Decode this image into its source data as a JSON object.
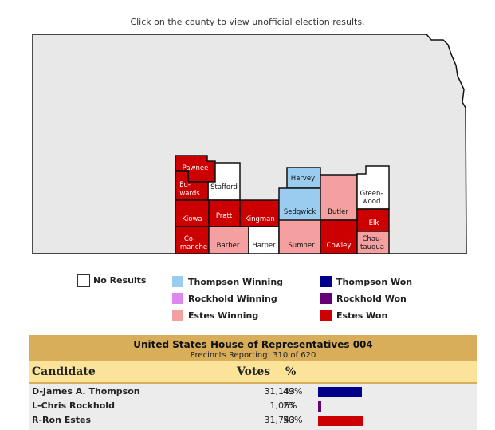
{
  "instruction": "Click on the county to view unofficial election results.",
  "colors": {
    "estes_won": "#cc0000",
    "estes_winning": "#f4a0a0",
    "thompson_won": "#00008b",
    "thompson_winning": "#99ccee",
    "rockhold_won": "#660077",
    "rockhold_winning": "#dd88ee",
    "no_results": "#ffffff",
    "state_fill": "#e8e8e8"
  },
  "counties": [
    {
      "name": "Pawnee",
      "status": "Estes Won"
    },
    {
      "name": "Stafford",
      "status": "No Results"
    },
    {
      "name": "Ed-wards",
      "status": "Estes Won"
    },
    {
      "name": "Kiowa",
      "status": "Estes Won"
    },
    {
      "name": "Pratt",
      "status": "Estes Won"
    },
    {
      "name": "Kingman",
      "status": "Estes Won"
    },
    {
      "name": "Harvey",
      "status": "Thompson Winning"
    },
    {
      "name": "Sedgwick",
      "status": "Thompson Winning"
    },
    {
      "name": "Butler",
      "status": "Estes Winning"
    },
    {
      "name": "Greenwood",
      "status": "No Results"
    },
    {
      "name": "Elk",
      "status": "Estes Won"
    },
    {
      "name": "Co-manche",
      "status": "Estes Won"
    },
    {
      "name": "Barber",
      "status": "Estes Winning"
    },
    {
      "name": "Harper",
      "status": "No Results"
    },
    {
      "name": "Sumner",
      "status": "Estes Winning"
    },
    {
      "name": "Cowley",
      "status": "Estes Won"
    },
    {
      "name": "Chau-tauqua",
      "status": "Estes Winning"
    }
  ],
  "legend": [
    {
      "label": "No Results",
      "color": "#ffffff"
    },
    {
      "label": "Thompson Winning",
      "color": "#99ccee"
    },
    {
      "label": "Thompson Won",
      "color": "#00008b"
    },
    {
      "label": "Rockhold Winning",
      "color": "#dd88ee"
    },
    {
      "label": "Rockhold Won",
      "color": "#660077"
    },
    {
      "label": "Estes Winning",
      "color": "#f4a0a0"
    },
    {
      "label": "Estes Won",
      "color": "#cc0000"
    }
  ],
  "results": {
    "title": "United States House of Representatives 004",
    "precincts": "Precincts Reporting: 310 of 620",
    "col_candidate": "Candidate",
    "col_votes": "Votes",
    "col_pct": "%",
    "candidates": [
      {
        "name": "D-James A. Thompson",
        "votes": "31,143",
        "pct": "49%",
        "share": 0.49,
        "color": "#00008b"
      },
      {
        "name": "L-Chris Rockhold",
        "votes": "1,063",
        "pct": "2%",
        "share": 0.02,
        "color": "#660077"
      },
      {
        "name": "R-Ron Estes",
        "votes": "31,743",
        "pct": "50%",
        "share": 0.5,
        "color": "#cc0000"
      }
    ]
  }
}
